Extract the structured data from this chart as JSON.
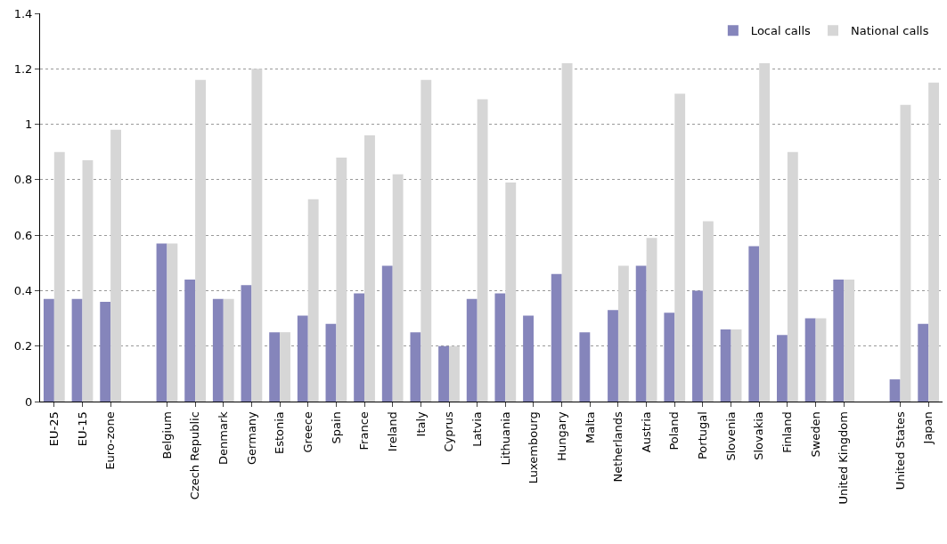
{
  "chart_data": {
    "type": "bar",
    "categories": [
      "EU-25",
      "EU-15",
      "Euro-zone",
      null,
      "Belgium",
      "Czech Republic",
      "Denmark",
      "Germany",
      "Estonia",
      "Greece",
      "Spain",
      "France",
      "Ireland",
      "Italy",
      "Cyprus",
      "Latvia",
      "Lithuania",
      "Luxembourg",
      "Hungary",
      "Malta",
      "Netherlands",
      "Austria",
      "Poland",
      "Portugal",
      "Slovenia",
      "Slovakia",
      "Finland",
      "Sweden",
      "United Kingdom",
      null,
      "United States",
      "Japan"
    ],
    "series": [
      {
        "name": "Local calls",
        "color": "#8585bb",
        "values": [
          0.37,
          0.37,
          0.36,
          null,
          0.57,
          0.44,
          0.37,
          0.42,
          0.25,
          0.31,
          0.28,
          0.39,
          0.49,
          0.25,
          0.2,
          0.37,
          0.39,
          0.31,
          0.46,
          0.25,
          0.33,
          0.49,
          0.32,
          0.4,
          0.26,
          0.56,
          0.24,
          0.3,
          0.44,
          null,
          0.08,
          0.28
        ]
      },
      {
        "name": "National calls",
        "color": "#d6d6d6",
        "values": [
          0.9,
          0.87,
          0.98,
          null,
          0.57,
          1.16,
          0.37,
          1.2,
          0.25,
          0.73,
          0.88,
          0.96,
          0.82,
          1.16,
          0.2,
          1.09,
          0.79,
          null,
          1.22,
          null,
          0.49,
          0.59,
          1.11,
          0.65,
          0.26,
          1.22,
          0.9,
          0.3,
          0.44,
          null,
          1.07,
          1.15
        ]
      }
    ],
    "ylim": [
      0,
      1.4
    ],
    "yticks": [
      0,
      0.2,
      0.4,
      0.6,
      0.8,
      1,
      1.2,
      1.4
    ],
    "grid": "y",
    "legend": "top right"
  }
}
